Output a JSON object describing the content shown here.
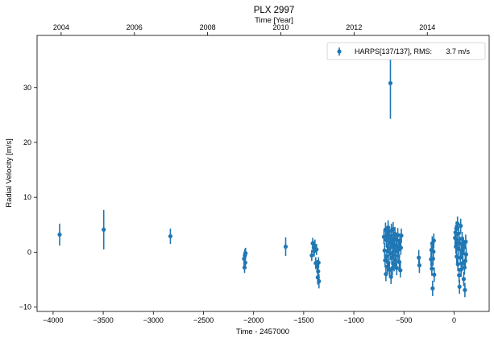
{
  "chart_data": {
    "type": "scatter",
    "title": "PLX 2997",
    "xlabel": "Time - 2457000",
    "ylabel": "Radial Velocity [m/s]",
    "top_xlabel": "Time [Year]",
    "xlim": [
      -4160,
      350
    ],
    "ylim": [
      -10.8,
      39.5
    ],
    "xticks": [
      -4000,
      -3500,
      -3000,
      -2500,
      -2000,
      -1500,
      -1000,
      -500,
      0
    ],
    "xtick_labels": [
      "−4000",
      "−3500",
      "−3000",
      "−2500",
      "−2000",
      "−1500",
      "−1000",
      "−500",
      "0"
    ],
    "yticks": [
      -10,
      0,
      10,
      20,
      30
    ],
    "ytick_labels": [
      "−10",
      "0",
      "10",
      "20",
      "30"
    ],
    "top_ticks": [
      {
        "label": "2004",
        "x": -3920
      },
      {
        "label": "2006",
        "x": -3189
      },
      {
        "label": "2008",
        "x": -2459
      },
      {
        "label": "2010",
        "x": -1728
      },
      {
        "label": "2012",
        "x": -998
      },
      {
        "label": "2014",
        "x": -267
      }
    ],
    "grid": false,
    "legend_position": "top-right",
    "series": [
      {
        "name": "HARPS[137/137], RMS:       3.7 m/s",
        "color": "#1f77b4",
        "marker": "circle",
        "points": [
          {
            "x": -3935,
            "y": 3.2,
            "err": 2.0
          },
          {
            "x": -3495,
            "y": 4.1,
            "err": 3.6
          },
          {
            "x": -2830,
            "y": 2.9,
            "err": 1.4
          },
          {
            "x": -2095,
            "y": -1.2,
            "err": 1.3
          },
          {
            "x": -2090,
            "y": -2.8,
            "err": 1.0
          },
          {
            "x": -2087,
            "y": -0.6,
            "err": 1.2
          },
          {
            "x": -2083,
            "y": -1.9,
            "err": 1.1
          },
          {
            "x": -2080,
            "y": -0.2,
            "err": 1.0
          },
          {
            "x": -1680,
            "y": 1.0,
            "err": 1.7
          },
          {
            "x": -1420,
            "y": -0.6,
            "err": 1.0
          },
          {
            "x": -1410,
            "y": 1.6,
            "err": 1.0
          },
          {
            "x": -1400,
            "y": 0.8,
            "err": 1.2
          },
          {
            "x": -1395,
            "y": 0.2,
            "err": 1.0
          },
          {
            "x": -1388,
            "y": 1.2,
            "err": 1.1
          },
          {
            "x": -1380,
            "y": -2.0,
            "err": 1.1
          },
          {
            "x": -1372,
            "y": 0.5,
            "err": 1.0
          },
          {
            "x": -1365,
            "y": -2.6,
            "err": 1.2
          },
          {
            "x": -1360,
            "y": -4.6,
            "err": 1.3
          },
          {
            "x": -1356,
            "y": -3.5,
            "err": 1.2
          },
          {
            "x": -1352,
            "y": -1.9,
            "err": 1.0
          },
          {
            "x": -1348,
            "y": -5.3,
            "err": 1.3
          },
          {
            "x": -700,
            "y": 2.8,
            "err": 1.3
          },
          {
            "x": -693,
            "y": 0.3,
            "err": 1.4
          },
          {
            "x": -688,
            "y": -1.5,
            "err": 1.3
          },
          {
            "x": -684,
            "y": 4.1,
            "err": 1.3
          },
          {
            "x": -680,
            "y": -4.0,
            "err": 1.3
          },
          {
            "x": -676,
            "y": 2.2,
            "err": 1.3
          },
          {
            "x": -672,
            "y": -0.8,
            "err": 1.3
          },
          {
            "x": -668,
            "y": 3.5,
            "err": 1.3
          },
          {
            "x": -665,
            "y": -2.6,
            "err": 1.3
          },
          {
            "x": -662,
            "y": 1.1,
            "err": 1.3
          },
          {
            "x": -658,
            "y": 4.5,
            "err": 1.3
          },
          {
            "x": -655,
            "y": -1.9,
            "err": 1.3
          },
          {
            "x": -652,
            "y": 0.6,
            "err": 1.3
          },
          {
            "x": -648,
            "y": 3.0,
            "err": 1.3
          },
          {
            "x": -645,
            "y": -3.2,
            "err": 1.3
          },
          {
            "x": -642,
            "y": 2.6,
            "err": 1.3
          },
          {
            "x": -638,
            "y": -0.2,
            "err": 1.3
          },
          {
            "x": -635,
            "y": 30.8,
            "err": 6.5
          },
          {
            "x": -632,
            "y": 1.6,
            "err": 1.3
          },
          {
            "x": -629,
            "y": -4.5,
            "err": 1.3
          },
          {
            "x": -626,
            "y": 3.9,
            "err": 1.3
          },
          {
            "x": -622,
            "y": -1.0,
            "err": 1.3
          },
          {
            "x": -619,
            "y": 2.0,
            "err": 1.3
          },
          {
            "x": -615,
            "y": -2.9,
            "err": 1.3
          },
          {
            "x": -612,
            "y": 0.9,
            "err": 1.3
          },
          {
            "x": -608,
            "y": 4.2,
            "err": 1.3
          },
          {
            "x": -605,
            "y": -0.5,
            "err": 1.3
          },
          {
            "x": -601,
            "y": 2.5,
            "err": 1.3
          },
          {
            "x": -598,
            "y": -2.2,
            "err": 1.3
          },
          {
            "x": -594,
            "y": 1.3,
            "err": 1.3
          },
          {
            "x": -590,
            "y": 3.3,
            "err": 1.3
          },
          {
            "x": -586,
            "y": -1.4,
            "err": 1.3
          },
          {
            "x": -582,
            "y": 0.2,
            "err": 1.3
          },
          {
            "x": -578,
            "y": 2.3,
            "err": 1.3
          },
          {
            "x": -572,
            "y": -2.9,
            "err": 1.3
          },
          {
            "x": -567,
            "y": 1.0,
            "err": 1.3
          },
          {
            "x": -562,
            "y": 3.1,
            "err": 1.3
          },
          {
            "x": -558,
            "y": -0.7,
            "err": 1.3
          },
          {
            "x": -552,
            "y": 0.5,
            "err": 1.3
          },
          {
            "x": -546,
            "y": -1.8,
            "err": 1.3
          },
          {
            "x": -541,
            "y": 2.1,
            "err": 1.3
          },
          {
            "x": -536,
            "y": -3.3,
            "err": 1.3
          },
          {
            "x": -531,
            "y": 0.8,
            "err": 1.3
          },
          {
            "x": -526,
            "y": 3.0,
            "err": 1.3
          },
          {
            "x": -352,
            "y": -1.0,
            "err": 1.4
          },
          {
            "x": -346,
            "y": -2.4,
            "err": 1.4
          },
          {
            "x": -230,
            "y": -1.3,
            "err": 1.3
          },
          {
            "x": -226,
            "y": 0.4,
            "err": 1.3
          },
          {
            "x": -222,
            "y": -3.0,
            "err": 1.3
          },
          {
            "x": -218,
            "y": 1.6,
            "err": 1.3
          },
          {
            "x": -214,
            "y": -6.6,
            "err": 1.4
          },
          {
            "x": -210,
            "y": -1.2,
            "err": 1.3
          },
          {
            "x": -206,
            "y": 0.1,
            "err": 1.3
          },
          {
            "x": -202,
            "y": 2.1,
            "err": 1.3
          },
          {
            "x": -198,
            "y": -4.1,
            "err": 1.3
          },
          {
            "x": 10,
            "y": 2.6,
            "err": 1.3
          },
          {
            "x": 14,
            "y": 3.6,
            "err": 1.3
          },
          {
            "x": 18,
            "y": 1.0,
            "err": 1.3
          },
          {
            "x": 22,
            "y": 4.3,
            "err": 1.3
          },
          {
            "x": 26,
            "y": -0.8,
            "err": 1.3
          },
          {
            "x": 30,
            "y": 2.1,
            "err": 1.3
          },
          {
            "x": 34,
            "y": 5.2,
            "err": 1.3
          },
          {
            "x": 38,
            "y": -2.2,
            "err": 1.3
          },
          {
            "x": 42,
            "y": 0.6,
            "err": 1.3
          },
          {
            "x": 46,
            "y": 3.4,
            "err": 1.3
          },
          {
            "x": 50,
            "y": -4.2,
            "err": 1.3
          },
          {
            "x": 54,
            "y": -6.3,
            "err": 1.3
          },
          {
            "x": 58,
            "y": 1.6,
            "err": 1.3
          },
          {
            "x": 62,
            "y": -1.0,
            "err": 1.3
          },
          {
            "x": 66,
            "y": 4.8,
            "err": 1.3
          },
          {
            "x": 70,
            "y": -3.2,
            "err": 1.3
          },
          {
            "x": 74,
            "y": 0.3,
            "err": 1.3
          },
          {
            "x": 80,
            "y": 2.4,
            "err": 1.3
          },
          {
            "x": 84,
            "y": -2.0,
            "err": 1.3
          },
          {
            "x": 88,
            "y": -0.2,
            "err": 1.3
          },
          {
            "x": 92,
            "y": 1.5,
            "err": 1.3
          },
          {
            "x": 96,
            "y": -4.9,
            "err": 1.3
          },
          {
            "x": 100,
            "y": 0.9,
            "err": 1.3
          },
          {
            "x": 104,
            "y": -2.8,
            "err": 1.3
          },
          {
            "x": 108,
            "y": -6.9,
            "err": 1.3
          },
          {
            "x": 112,
            "y": -1.6,
            "err": 1.3
          },
          {
            "x": 116,
            "y": 1.9,
            "err": 1.3
          },
          {
            "x": 120,
            "y": -0.4,
            "err": 1.3
          }
        ]
      }
    ]
  }
}
